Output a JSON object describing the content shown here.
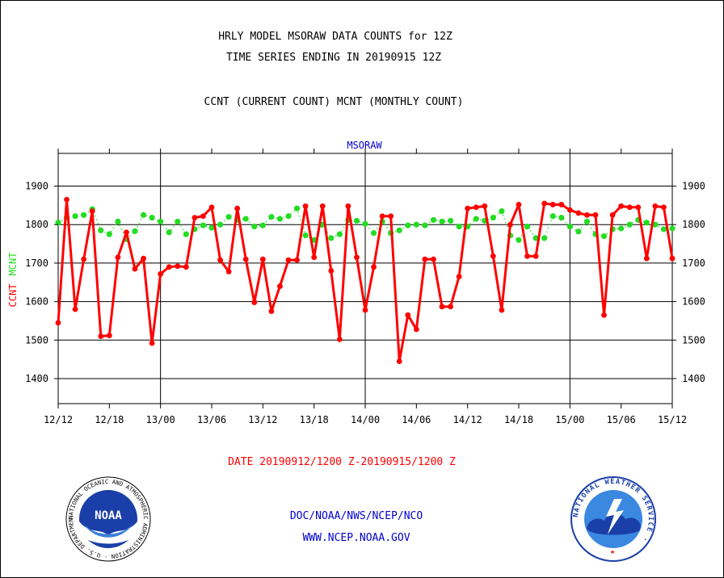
{
  "header": {
    "title_line1": "HRLY MODEL MSORAW DATA COUNTS for 12Z",
    "title_line2": "TIME SERIES ENDING IN 20190915 12Z",
    "subtitle": "CCNT (CURRENT COUNT) MCNT (MONTHLY COUNT)"
  },
  "footer": {
    "date_range": "DATE 20190912/1200 Z-20190915/1200 Z",
    "org_line": "DOC/NOAA/NWS/NCEP/NCO",
    "url_line": "WWW.NCEP.NOAA.GOV"
  },
  "logos": {
    "noaa_text": "NOAA",
    "noaa_ring": "NATIONAL OCEANIC AND ATMOSPHERIC ADMINISTRATION · U.S. DEPARTMENT OF COMMERCE ·",
    "nws_ring": "NATIONAL WEATHER SERVICE ·"
  },
  "colors": {
    "ccnt": "#ff0000",
    "mcnt": "#22dd22",
    "plot_label": "#0000cc",
    "grid": "#000000"
  },
  "chart_data": {
    "type": "line",
    "plot_label": "MSORAW",
    "ylabel_ccnt": "CCNT",
    "ylabel_mcnt": "MCNT",
    "x_ticks": [
      "12/12",
      "12/18",
      "13/00",
      "13/06",
      "13/12",
      "13/18",
      "14/00",
      "14/06",
      "14/12",
      "14/18",
      "15/00",
      "15/06",
      "15/12"
    ],
    "x_range": [
      0,
      72
    ],
    "y_ticks": [
      1400,
      1500,
      1600,
      1700,
      1800,
      1900
    ],
    "ylim": [
      1335,
      1985
    ],
    "grid_y": true,
    "day_separators_at": [
      12,
      36,
      60
    ],
    "series": [
      {
        "name": "CCNT",
        "values": [
          1545,
          1865,
          1580,
          1710,
          1835,
          1510,
          1512,
          1715,
          1780,
          1685,
          1712,
          1492,
          1672,
          1690,
          1692,
          1690,
          1818,
          1822,
          1845,
          1708,
          1678,
          1842,
          1710,
          1598,
          1710,
          1575,
          1640,
          1708,
          1708,
          1848,
          1715,
          1848,
          1680,
          1502,
          1848,
          1715,
          1578,
          1690,
          1822,
          1822,
          1445,
          1565,
          1528,
          1710,
          1710,
          1587,
          1587,
          1665,
          1842,
          1845,
          1848,
          1718,
          1578,
          1800,
          1852,
          1718,
          1718,
          1855,
          1852,
          1852,
          1838,
          1830,
          1825,
          1825,
          1565,
          1825,
          1848,
          1845,
          1845,
          1712,
          1848,
          1845,
          1712
        ]
      },
      {
        "name": "MCNT",
        "values": [
          1805,
          1818,
          1822,
          1825,
          1840,
          1785,
          1775,
          1808,
          1762,
          1783,
          1825,
          1818,
          1808,
          1780,
          1808,
          1775,
          1788,
          1798,
          1792,
          1800,
          1820,
          1812,
          1815,
          1795,
          1798,
          1820,
          1815,
          1822,
          1842,
          1772,
          1760,
          1800,
          1765,
          1775,
          1812,
          1810,
          1802,
          1778,
          1808,
          1778,
          1785,
          1798,
          1800,
          1798,
          1812,
          1808,
          1810,
          1795,
          1795,
          1815,
          1810,
          1818,
          1835,
          1772,
          1760,
          1795,
          1765,
          1765,
          1822,
          1818,
          1795,
          1782,
          1808,
          1775,
          1770,
          1788,
          1790,
          1800,
          1812,
          1805,
          1800,
          1788,
          1790
        ]
      }
    ]
  }
}
